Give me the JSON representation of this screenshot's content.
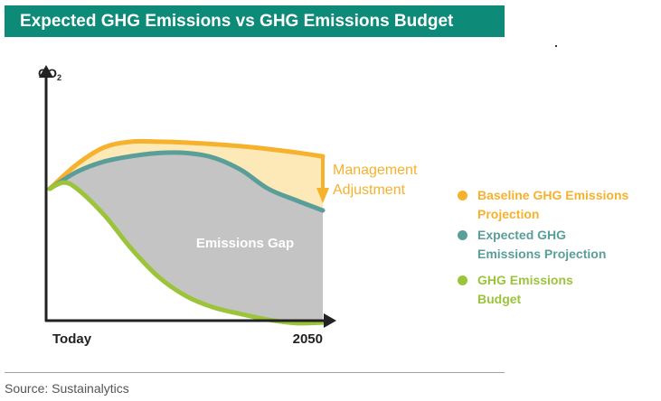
{
  "title": "Expected GHG Emissions vs GHG Emissions Budget",
  "source": "Source: Sustainalytics",
  "colors": {
    "title_bg": "#0d8a78",
    "baseline": "#f6b12d",
    "expected": "#5a9e9a",
    "budget": "#9cc43b",
    "gap_fill": "#c4c4c4",
    "mgmt_fill": "#fde9b7"
  },
  "chart_data": {
    "type": "area",
    "title": "Expected GHG Emissions vs GHG Emissions Budget",
    "ylabel": "CO2",
    "xlabel": "",
    "x_tick_labels": [
      "Today",
      "2050"
    ],
    "xlim": [
      0,
      100
    ],
    "ylim": [
      0,
      100
    ],
    "grid": false,
    "legend_position": "right",
    "series": [
      {
        "name": "Baseline GHG Emissions Projection",
        "color": "#f6b12d",
        "x": [
          0,
          10,
          20,
          30,
          40,
          50,
          60,
          70,
          80,
          90,
          100
        ],
        "values": [
          70,
          83,
          92,
          95,
          95,
          94.5,
          93.7,
          92.6,
          91.1,
          89.3,
          87.2
        ]
      },
      {
        "name": "Expected GHG Emissions Projection",
        "color": "#5a9e9a",
        "x": [
          0,
          10,
          20,
          30,
          40,
          50,
          60,
          70,
          80,
          90,
          100
        ],
        "values": [
          70,
          79,
          84.5,
          87.3,
          89,
          89,
          86.5,
          80,
          70,
          64,
          58.5
        ]
      },
      {
        "name": "GHG Emissions Budget",
        "color": "#9cc43b",
        "x": [
          0,
          5,
          10,
          20,
          30,
          40,
          50,
          60,
          70,
          80,
          90,
          100
        ],
        "values": [
          70,
          73.3,
          70,
          56,
          38,
          23,
          13,
          7,
          3.5,
          0.5,
          -1.3,
          -1
        ]
      }
    ],
    "annotations": [
      {
        "text": "Emissions Gap",
        "between": [
          "Expected GHG Emissions Projection",
          "GHG Emissions Budget"
        ]
      },
      {
        "text": "Management Adjustment",
        "lines": [
          "Management",
          "Adjustment"
        ],
        "between": [
          "Baseline GHG Emissions Projection",
          "Expected GHG Emissions Projection"
        ],
        "at_x": 100
      }
    ],
    "legend": [
      {
        "lines": [
          "Baseline GHG Emissions",
          "Projection"
        ],
        "color": "#f6b12d"
      },
      {
        "lines": [
          "Expected GHG",
          "Emissions Projection"
        ],
        "color": "#5a9e9a"
      },
      {
        "lines": [
          "GHG Emissions",
          "Budget"
        ],
        "color": "#9cc43b"
      }
    ]
  }
}
